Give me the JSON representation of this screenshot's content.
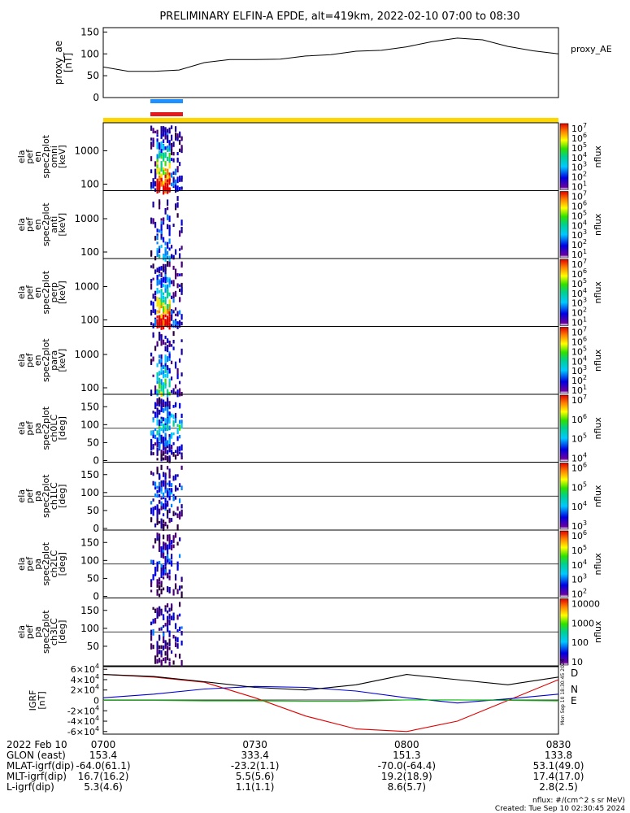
{
  "title": "PRELIMINARY ELFIN-A EPDE, alt=419km, 2022-02-10 07:00 to 08:30",
  "colors": {
    "ae_line": "#000000",
    "bar_blue": "#1e90ff",
    "bar_red": "#e41a1c",
    "bar_yellow": "#ffd700",
    "igrf_d": "#e00000",
    "igrf_n": "#0000d0",
    "igrf_e": "#00c000",
    "igrf_total": "#000000"
  },
  "ae_panel": {
    "ylabel_lines": [
      "proxy_ae",
      "[nT]"
    ],
    "yticks": [
      "0",
      "50",
      "100",
      "150"
    ],
    "ylim": [
      0,
      160
    ],
    "legend": "proxy_AE",
    "time_min": [
      0,
      5,
      10,
      15,
      20,
      25,
      30,
      35,
      40,
      45,
      50,
      55,
      60,
      65,
      70,
      75,
      80,
      85,
      90
    ],
    "values": [
      70,
      60,
      60,
      63,
      80,
      87,
      87,
      88,
      95,
      98,
      106,
      108,
      116,
      128,
      136,
      132,
      117,
      107,
      100
    ]
  },
  "spectro_panels": [
    {
      "label_lines": [
        "ela",
        "pef",
        "en",
        "spec2plot",
        "omni",
        "[keV]"
      ],
      "yticks": [
        "100",
        "1000"
      ],
      "kind": "energy",
      "intensity": 1.0,
      "has_hline": true
    },
    {
      "label_lines": [
        "ela",
        "pef",
        "en",
        "spec2plot",
        "anti",
        "[keV]"
      ],
      "yticks": [
        "100",
        "1000"
      ],
      "kind": "energy",
      "intensity": 0.35,
      "has_hline": true
    },
    {
      "label_lines": [
        "ela",
        "pef",
        "en",
        "spec2plot",
        "perp",
        "[keV]"
      ],
      "yticks": [
        "100",
        "1000"
      ],
      "kind": "energy",
      "intensity": 1.0,
      "has_hline": true
    },
    {
      "label_lines": [
        "ela",
        "pef",
        "en",
        "spec2plot",
        "para",
        "[keV]"
      ],
      "yticks": [
        "100",
        "1000"
      ],
      "kind": "energy",
      "intensity": 0.55,
      "has_hline": true
    },
    {
      "label_lines": [
        "ela",
        "pef",
        "pa",
        "spec2plot",
        "ch0LC",
        "[deg]"
      ],
      "yticks": [
        "0",
        "50",
        "100",
        "150"
      ],
      "kind": "pa",
      "intensity": 0.9,
      "has_hline": true
    },
    {
      "label_lines": [
        "ela",
        "pef",
        "pa",
        "spec2plot",
        "ch1LC",
        "[deg]"
      ],
      "yticks": [
        "0",
        "50",
        "100",
        "150"
      ],
      "kind": "pa",
      "intensity": 0.6,
      "has_hline": true
    },
    {
      "label_lines": [
        "ela",
        "pef",
        "pa",
        "spec2plot",
        "ch2LC",
        "[deg]"
      ],
      "yticks": [
        "0",
        "50",
        "100",
        "150"
      ],
      "kind": "pa",
      "intensity": 0.55,
      "has_hline": true
    },
    {
      "label_lines": [
        "ela",
        "pef",
        "pa",
        "spec2plot",
        "ch3LC",
        "[deg]"
      ],
      "yticks": [
        "50",
        "100",
        "150"
      ],
      "kind": "pa",
      "intensity": 0.45,
      "has_hline": true
    }
  ],
  "colorbars": [
    {
      "unit": "nflux",
      "labels": [
        "10^7",
        "10^6",
        "10^5",
        "10^4",
        "10^3",
        "10^2",
        "10^1"
      ]
    },
    {
      "unit": "nflux",
      "labels": [
        "10^7",
        "10^6",
        "10^5",
        "10^4",
        "10^3",
        "10^2",
        "10^1"
      ]
    },
    {
      "unit": "nflux",
      "labels": [
        "10^7",
        "10^6",
        "10^5",
        "10^4",
        "10^3",
        "10^2",
        "10^1"
      ]
    },
    {
      "unit": "nflux",
      "labels": [
        "10^7",
        "10^6",
        "10^5",
        "10^4",
        "10^3",
        "10^2",
        "10^1"
      ]
    },
    {
      "unit": "nflux",
      "labels": [
        "10^7",
        "10^6",
        "10^5",
        "10^4"
      ]
    },
    {
      "unit": "nflux",
      "labels": [
        "10^6",
        "10^5",
        "10^4",
        "10^3"
      ]
    },
    {
      "unit": "nflux",
      "labels": [
        "10^6",
        "10^5",
        "10^4",
        "10^3",
        "10^2"
      ]
    },
    {
      "unit": "nflux",
      "labels": [
        "10000",
        "1000",
        "100",
        "10"
      ]
    }
  ],
  "igrf_panel": {
    "ylabel_lines": [
      "IGRF",
      "[nT]"
    ],
    "yticks": [
      "6×10^4",
      "4×10^4",
      "2×10^4",
      "0",
      "-2×10^4",
      "-4×10^4",
      "-6×10^4"
    ],
    "legend": [
      "D",
      "N",
      "E"
    ],
    "side_text": "Mon Sep 10 18:30:45 2024"
  },
  "chart_data": [
    {
      "type": "line",
      "title": "PRELIMINARY ELFIN-A EPDE, alt=419km, 2022-02-10 07:00 to 08:30",
      "ylabel": "proxy_ae [nT]",
      "ylim": [
        0,
        160
      ],
      "series": [
        {
          "name": "proxy_AE",
          "x": [
            "07:00",
            "07:05",
            "07:10",
            "07:15",
            "07:20",
            "07:25",
            "07:30",
            "07:35",
            "07:40",
            "07:45",
            "07:50",
            "07:55",
            "08:00",
            "08:05",
            "08:10",
            "08:15",
            "08:20",
            "08:25",
            "08:30"
          ],
          "values": [
            70,
            60,
            60,
            63,
            80,
            87,
            87,
            88,
            95,
            98,
            106,
            108,
            116,
            128,
            136,
            132,
            117,
            107,
            100
          ]
        }
      ]
    },
    {
      "type": "line",
      "ylabel": "IGRF [nT]",
      "ylim": [
        -65000,
        65000
      ],
      "x": [
        "07:00",
        "07:10",
        "07:20",
        "07:30",
        "07:40",
        "07:50",
        "08:00",
        "08:10",
        "08:20",
        "08:30"
      ],
      "series": [
        {
          "name": "D",
          "values": [
            50000,
            45000,
            35000,
            5000,
            -30000,
            -55000,
            -60000,
            -40000,
            0,
            40000
          ]
        },
        {
          "name": "N",
          "values": [
            5000,
            12000,
            22000,
            27000,
            25000,
            18000,
            5000,
            -5000,
            3000,
            12000
          ]
        },
        {
          "name": "E",
          "values": [
            0,
            0,
            -1000,
            -1000,
            -1500,
            -1500,
            1000,
            1000,
            0,
            -1000
          ]
        },
        {
          "values": [
            50000,
            46000,
            36000,
            25000,
            20000,
            30000,
            50000,
            40000,
            30000,
            45000
          ]
        }
      ]
    }
  ],
  "time_axis": {
    "row_label": "2022 Feb 10",
    "ticks": [
      "0700",
      "0730",
      "0800",
      "0830"
    ]
  },
  "ephemeris": [
    {
      "label": "GLON (east)",
      "values": [
        "153.4",
        "333.4",
        "151.3",
        "133.8"
      ]
    },
    {
      "label": "MLAT-igrf(dip)",
      "values": [
        "-64.0(61.1)",
        "-23.2(1.1)",
        "-70.0(-64.4)",
        "53.1(49.0)"
      ]
    },
    {
      "label": "MLT-igrf(dip)",
      "values": [
        "16.7(16.2)",
        "5.5(5.6)",
        "19.2(18.9)",
        "17.4(17.0)"
      ]
    },
    {
      "label": "L-igrf(dip)",
      "values": [
        "5.3(4.6)",
        "1.1(1.1)",
        "8.6(5.7)",
        "2.8(2.5)"
      ]
    }
  ],
  "footer": {
    "units": "nflux: #/(cm^2 s sr MeV)",
    "created": "Created: Tue Sep 10 02:30:45 2024"
  }
}
